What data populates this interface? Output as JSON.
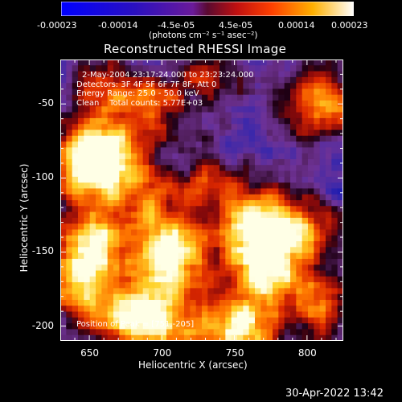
{
  "colorbar": {
    "tick_labels": [
      "-0.00023",
      "-0.00014",
      "-4.5e-05",
      "4.5e-05",
      "0.00014",
      "0.00023"
    ],
    "units": "(photons cm⁻² s⁻¹ asec⁻²)",
    "range": [
      -0.00023,
      0.00023
    ],
    "colormap": "RHESSI blue-purple-red-yellow-white"
  },
  "chart_data": {
    "type": "heatmap",
    "title": "Reconstructed RHESSI Image",
    "xlabel": "Heliocentric X (arcsec)",
    "ylabel": "Heliocentric Y (arcsec)",
    "xlim": [
      630,
      825
    ],
    "ylim": [
      -210,
      -20
    ],
    "x_ticks": [
      650,
      700,
      750,
      800
    ],
    "y_ticks": [
      -50,
      -100,
      -150,
      -200
    ],
    "info_lines": [
      "2-May-2004 23:17:24.000 to 23:23:24.000",
      "Detectors: 3F 4F 5F 6F 7F 8F, Att 0",
      "Energy Range: 25.0 - 50.0 keV",
      "Clean    Total counts: 5.77E+03"
    ],
    "peak_text": "Position of Peak = [751,-205]",
    "peak": [
      751,
      -205
    ],
    "sources": [
      {
        "x": 706,
        "y": -150,
        "level": 0.95
      },
      {
        "x": 648,
        "y": -90,
        "level": 0.9
      },
      {
        "x": 650,
        "y": -145,
        "level": 0.8
      },
      {
        "x": 764,
        "y": -128,
        "level": 0.85
      },
      {
        "x": 772,
        "y": -160,
        "level": 0.8
      },
      {
        "x": 810,
        "y": -50,
        "level": 0.75
      },
      {
        "x": 752,
        "y": -205,
        "level": 0.95
      },
      {
        "x": 700,
        "y": -195,
        "level": 0.7
      },
      {
        "x": 672,
        "y": -195,
        "level": 0.65
      },
      {
        "x": 695,
        "y": -50,
        "level": 0.55
      },
      {
        "x": 660,
        "y": -40,
        "level": 0.5
      },
      {
        "x": 668,
        "y": -85,
        "level": 0.55
      },
      {
        "x": 688,
        "y": -110,
        "level": 0.45
      },
      {
        "x": 730,
        "y": -100,
        "level": 0.4
      },
      {
        "x": 800,
        "y": -135,
        "level": 0.55
      },
      {
        "x": 810,
        "y": -185,
        "level": 0.55
      },
      {
        "x": 735,
        "y": -35,
        "level": 0.45
      },
      {
        "x": 640,
        "y": -175,
        "level": 0.6
      }
    ]
  },
  "footer": {
    "timestamp": "30-Apr-2022 13:42"
  }
}
